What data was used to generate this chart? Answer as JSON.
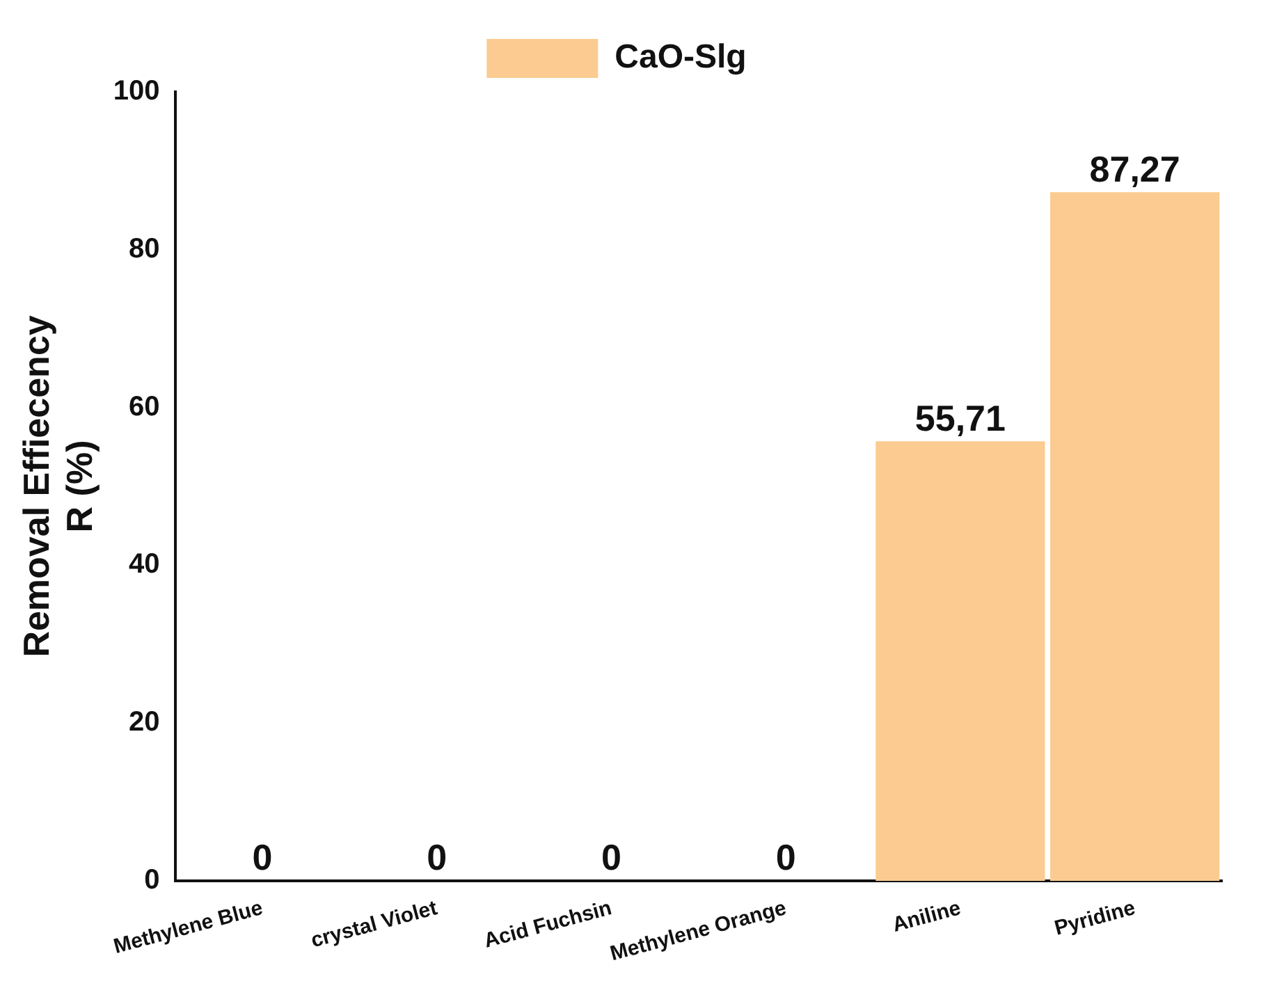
{
  "chart_data": {
    "type": "bar",
    "ylabel": "Removal Effiecency\nR (%)",
    "categories": [
      "Methylene Blue",
      "crystal Violet",
      "Acid Fuchsin",
      "Methylene Orange",
      "Aniline",
      "Pyridine"
    ],
    "series": [
      {
        "name": "CaO-Slg",
        "color": "#fbcb91",
        "values": [
          0,
          0,
          0,
          0,
          55.71,
          87.27
        ],
        "value_labels": [
          "0",
          "0",
          "0",
          "0",
          "55,71",
          "87,27"
        ]
      }
    ],
    "ylim": [
      0,
      100
    ],
    "yticks": [
      0,
      20,
      40,
      60,
      80,
      100
    ],
    "grid": false,
    "legend": "top"
  }
}
